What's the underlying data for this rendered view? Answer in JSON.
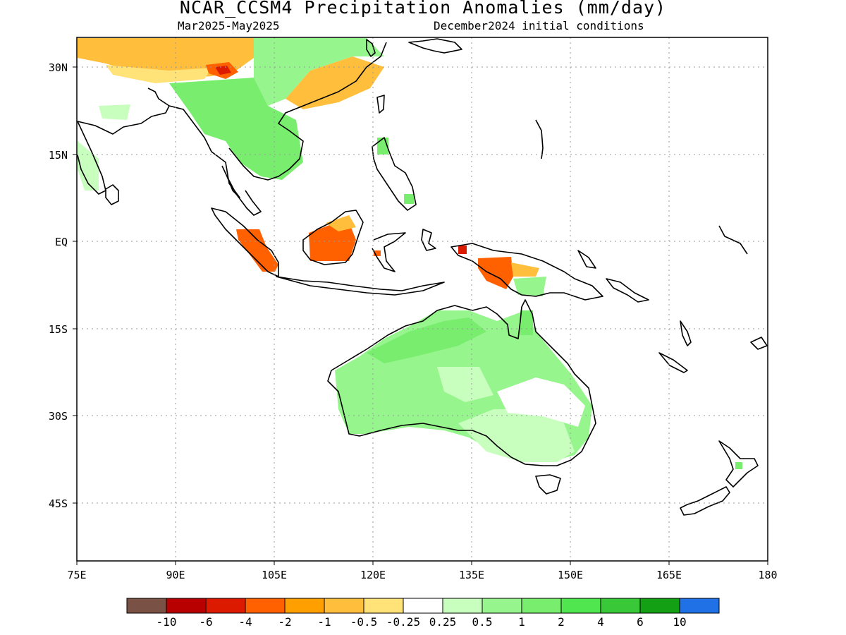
{
  "title": "NCAR_CCSM4 Precipitation Anomalies (mm/day)",
  "subtitle_left": "Mar2025-May2025",
  "subtitle_right": "December2024 initial conditions",
  "map": {
    "lon_range": [
      "75E",
      "180"
    ],
    "lat_range": [
      "52S",
      "35N"
    ],
    "grid": "dotted",
    "lon_labels": [
      "75E",
      "90E",
      "105E",
      "120E",
      "135E",
      "150E",
      "165E",
      "180"
    ],
    "lat_labels": [
      "30N",
      "15N",
      "EQ",
      "15S",
      "30S",
      "45S"
    ]
  },
  "colorbar": {
    "colors": [
      "#7a5245",
      "#b80000",
      "#dc1a00",
      "#ff6000",
      "#ffa000",
      "#ffbe3c",
      "#ffe278",
      "#ffffff",
      "#c8ffbe",
      "#96f58c",
      "#78ed6e",
      "#50e650",
      "#38c838",
      "#14a014",
      "#2070e6"
    ],
    "labels": [
      "-10",
      "-6",
      "-4",
      "-2",
      "-1",
      "-0.5",
      "-0.25",
      "0.25",
      "0.5",
      "1",
      "2",
      "4",
      "6",
      "10"
    ]
  }
}
